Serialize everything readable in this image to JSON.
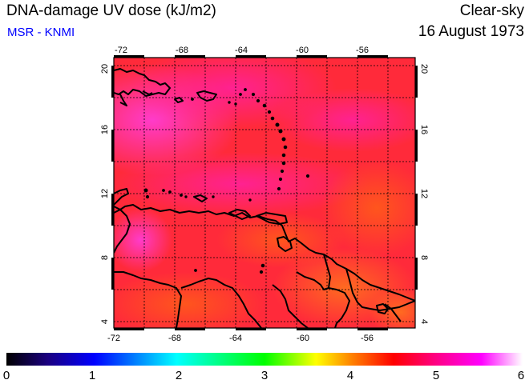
{
  "title": "DNA-damage UV dose (kJ/m2)",
  "source": "MSR - KNMI",
  "condition": "Clear-sky",
  "date": "16 August 1973",
  "map": {
    "lon_range": [
      -72,
      -52
    ],
    "lat_range": [
      3.5,
      20.5
    ],
    "lon_ticks": [
      "-72",
      "-68",
      "-64",
      "-60",
      "-56"
    ],
    "lat_ticks": [
      "4",
      "8",
      "12",
      "16",
      "20"
    ],
    "grid": true,
    "gridline_style": "dotted",
    "coastline_color": "#000000"
  },
  "colorbar": {
    "min": 0,
    "max": 6,
    "tick_labels": [
      "0",
      "1",
      "2",
      "3",
      "4",
      "5",
      "6"
    ],
    "colors": [
      "#000000",
      "#1a0080",
      "#0000ff",
      "#00ffff",
      "#00ff00",
      "#ffff00",
      "#ff8000",
      "#ff0000",
      "#ff0080",
      "#ff00ff",
      "#ffffff"
    ]
  },
  "field_colors": {
    "low": "#ff5a20",
    "mid": "#ff1e3c",
    "high": "#ff2090",
    "peak": "#ff3cd2"
  }
}
